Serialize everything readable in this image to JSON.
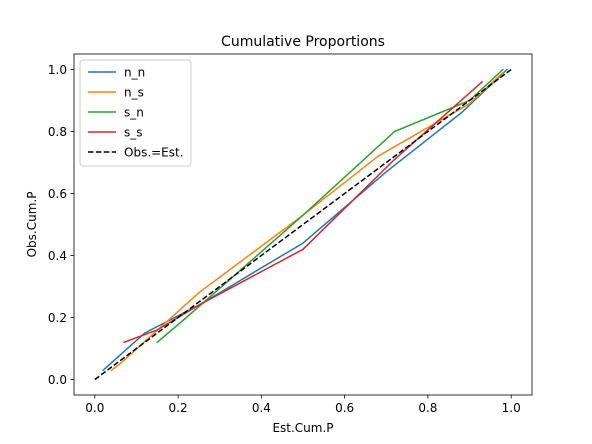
{
  "chart_data": {
    "type": "line",
    "title": "Cumulative Proportions",
    "xlabel": "Est.Cum.P",
    "ylabel": "Obs.Cum.P",
    "xlim": [
      -0.05,
      1.05
    ],
    "ylim": [
      -0.05,
      1.05
    ],
    "xticks": [
      0.0,
      0.2,
      0.4,
      0.6,
      0.8,
      1.0
    ],
    "yticks": [
      0.0,
      0.2,
      0.4,
      0.6,
      0.8,
      1.0
    ],
    "xtick_labels": [
      "0.0",
      "0.2",
      "0.4",
      "0.6",
      "0.8",
      "1.0"
    ],
    "ytick_labels": [
      "0.0",
      "0.2",
      "0.4",
      "0.6",
      "0.8",
      "1.0"
    ],
    "grid": false,
    "legend_position": "top-left",
    "series": [
      {
        "name": "n_n",
        "color": "#1f77b4",
        "dash": "solid",
        "x": [
          0.02,
          0.12,
          0.25,
          0.5,
          0.7,
          0.88,
          0.99
        ],
        "y": [
          0.03,
          0.15,
          0.24,
          0.44,
          0.67,
          0.86,
          1.0
        ]
      },
      {
        "name": "n_s",
        "color": "#ff7f0e",
        "dash": "solid",
        "x": [
          0.04,
          0.06,
          0.25,
          0.5,
          0.68,
          0.9,
          0.98
        ],
        "y": [
          0.03,
          0.05,
          0.28,
          0.53,
          0.72,
          0.89,
          0.99
        ]
      },
      {
        "name": "s_n",
        "color": "#2ca02c",
        "dash": "solid",
        "x": [
          0.15,
          0.22,
          0.5,
          0.72,
          0.9,
          0.98
        ],
        "y": [
          0.12,
          0.2,
          0.53,
          0.8,
          0.9,
          1.0
        ]
      },
      {
        "name": "s_s",
        "color": "#d62728",
        "dash": "solid",
        "x": [
          0.07,
          0.15,
          0.25,
          0.5,
          0.72,
          0.93
        ],
        "y": [
          0.12,
          0.16,
          0.24,
          0.42,
          0.71,
          0.96
        ]
      },
      {
        "name": "Obs.=Est.",
        "color": "#000000",
        "dash": "dashed",
        "x": [
          0.0,
          1.0
        ],
        "y": [
          0.0,
          1.0
        ]
      }
    ]
  }
}
